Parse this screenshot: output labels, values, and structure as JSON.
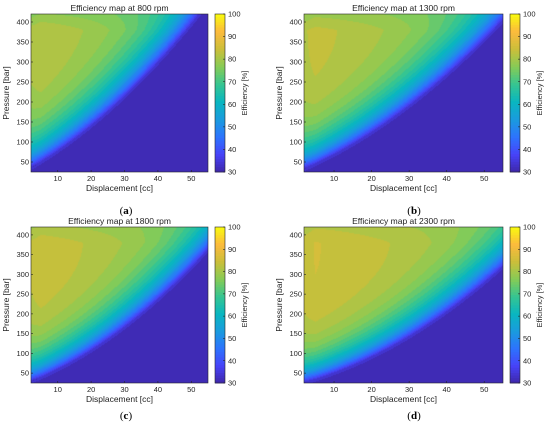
{
  "chart_data": [
    {
      "type": "heatmap",
      "panel_label": "a",
      "title": "Efficiency map at 800 rpm",
      "rpm": 800,
      "xlabel": "Displacement [cc]",
      "ylabel": "Pressure [bar]",
      "colorbar_label": "Efficiency [%]",
      "xlim": [
        2,
        55
      ],
      "ylim": [
        25,
        420
      ],
      "clim": [
        30,
        100
      ],
      "xticks": [
        10,
        20,
        30,
        40,
        50
      ],
      "yticks": [
        50,
        100,
        150,
        200,
        250,
        300,
        350,
        400
      ],
      "cticks": [
        30,
        40,
        50,
        60,
        70,
        80,
        90,
        100
      ],
      "max_efficiency_region": {
        "displacement": [
          4,
          12
        ],
        "pressure": [
          320,
          420
        ],
        "efficiency": 82
      }
    },
    {
      "type": "heatmap",
      "panel_label": "b",
      "title": "Efficiency map at 1300 rpm",
      "rpm": 1300,
      "xlabel": "Displacement [cc]",
      "ylabel": "Pressure [bar]",
      "colorbar_label": "Efficiency [%]",
      "xlim": [
        2,
        55
      ],
      "ylim": [
        25,
        420
      ],
      "clim": [
        30,
        100
      ],
      "xticks": [
        10,
        20,
        30,
        40,
        50
      ],
      "yticks": [
        50,
        100,
        150,
        200,
        250,
        300,
        350,
        400
      ],
      "cticks": [
        30,
        40,
        50,
        60,
        70,
        80,
        90,
        100
      ],
      "max_efficiency_region": {
        "displacement": [
          5,
          16
        ],
        "pressure": [
          290,
          420
        ],
        "efficiency": 83
      }
    },
    {
      "type": "heatmap",
      "panel_label": "c",
      "title": "Efficiency map at 1800 rpm",
      "rpm": 1800,
      "xlabel": "Displacement [cc]",
      "ylabel": "Pressure [bar]",
      "colorbar_label": "Efficiency [%]",
      "xlim": [
        2,
        55
      ],
      "ylim": [
        25,
        420
      ],
      "clim": [
        30,
        100
      ],
      "xticks": [
        10,
        20,
        30,
        40,
        50
      ],
      "yticks": [
        50,
        100,
        150,
        200,
        250,
        300,
        350,
        400
      ],
      "cticks": [
        30,
        40,
        50,
        60,
        70,
        80,
        90,
        100
      ],
      "max_efficiency_region": {
        "displacement": [
          6,
          25
        ],
        "pressure": [
          275,
          420
        ],
        "efficiency": 83
      }
    },
    {
      "type": "heatmap",
      "panel_label": "d",
      "title": "Efficiency map at 2300 rpm",
      "rpm": 2300,
      "xlabel": "Displacement [cc]",
      "ylabel": "Pressure [bar]",
      "colorbar_label": "Efficiency [%]",
      "xlim": [
        2,
        55
      ],
      "ylim": [
        25,
        420
      ],
      "clim": [
        30,
        100
      ],
      "xticks": [
        10,
        20,
        30,
        40,
        50
      ],
      "yticks": [
        50,
        100,
        150,
        200,
        250,
        300,
        350,
        400
      ],
      "cticks": [
        30,
        40,
        50,
        60,
        70,
        80,
        90,
        100
      ],
      "max_efficiency_region": {
        "displacement": [
          6,
          32
        ],
        "pressure": [
          265,
          420
        ],
        "efficiency": 84
      }
    }
  ],
  "colormap": {
    "name": "parula",
    "stops": [
      "#3e26a8",
      "#4743f8",
      "#2d73fe",
      "#1a9bde",
      "#09b6c0",
      "#36c591",
      "#86cb56",
      "#cbbf3a",
      "#fcba3d",
      "#f9fb0e"
    ]
  }
}
